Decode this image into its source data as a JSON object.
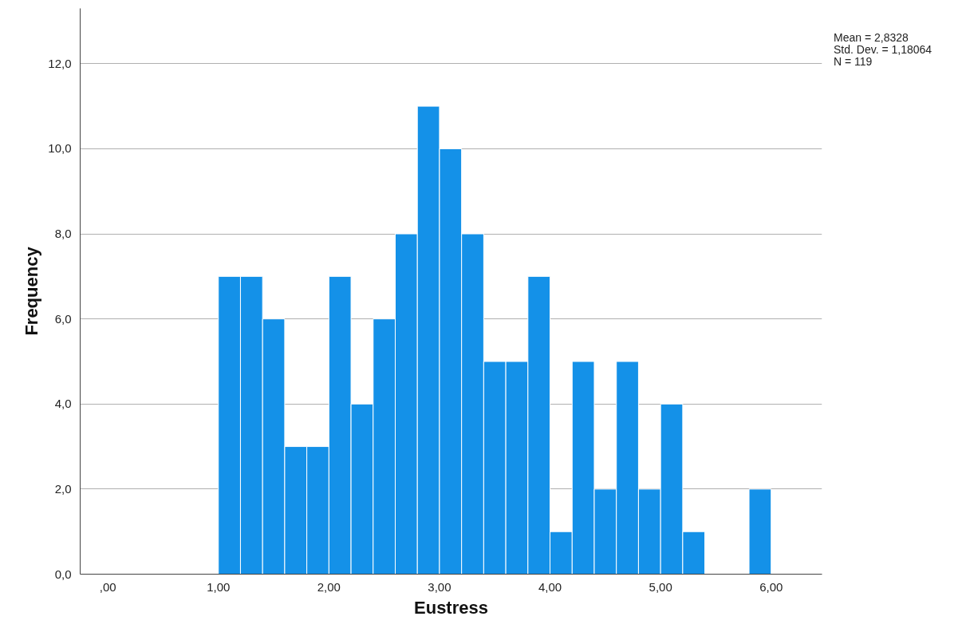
{
  "chart_data": {
    "type": "histogram",
    "xlabel": "Eustress",
    "ylabel": "Frequency",
    "bins": [
      1.0,
      1.2,
      1.4,
      1.6,
      1.8,
      2.0,
      2.2,
      2.4,
      2.6,
      2.8,
      3.0,
      3.2,
      3.4,
      3.6,
      3.8,
      4.0,
      4.2,
      4.4,
      4.6,
      4.8,
      5.0,
      5.2,
      5.4,
      5.6,
      5.8,
      6.0
    ],
    "values": [
      7,
      7,
      6,
      3,
      3,
      7,
      4,
      6,
      8,
      11,
      10,
      8,
      5,
      5,
      7,
      1,
      5,
      2,
      5,
      2,
      4,
      1,
      0,
      0,
      2
    ],
    "color": "#1491e8",
    "xlim": [
      -0.25,
      6.46
    ],
    "ylim": [
      0,
      13.3
    ],
    "xticks": [
      {
        "value": 0,
        "label": ",00"
      },
      {
        "value": 1,
        "label": "1,00"
      },
      {
        "value": 2,
        "label": "2,00"
      },
      {
        "value": 3,
        "label": "3,00"
      },
      {
        "value": 4,
        "label": "4,00"
      },
      {
        "value": 5,
        "label": "5,00"
      },
      {
        "value": 6,
        "label": "6,00"
      }
    ],
    "yticks": [
      {
        "value": 0,
        "label": "0,0"
      },
      {
        "value": 2,
        "label": "2,0"
      },
      {
        "value": 4,
        "label": "4,0"
      },
      {
        "value": 6,
        "label": "6,0"
      },
      {
        "value": 8,
        "label": "8,0"
      },
      {
        "value": 10,
        "label": "10,0"
      },
      {
        "value": 12,
        "label": "12,0"
      }
    ],
    "grid": "y",
    "annotations": [
      "Mean = 2,8328",
      "Std. Dev. = 1,18064",
      "N = 119"
    ]
  }
}
